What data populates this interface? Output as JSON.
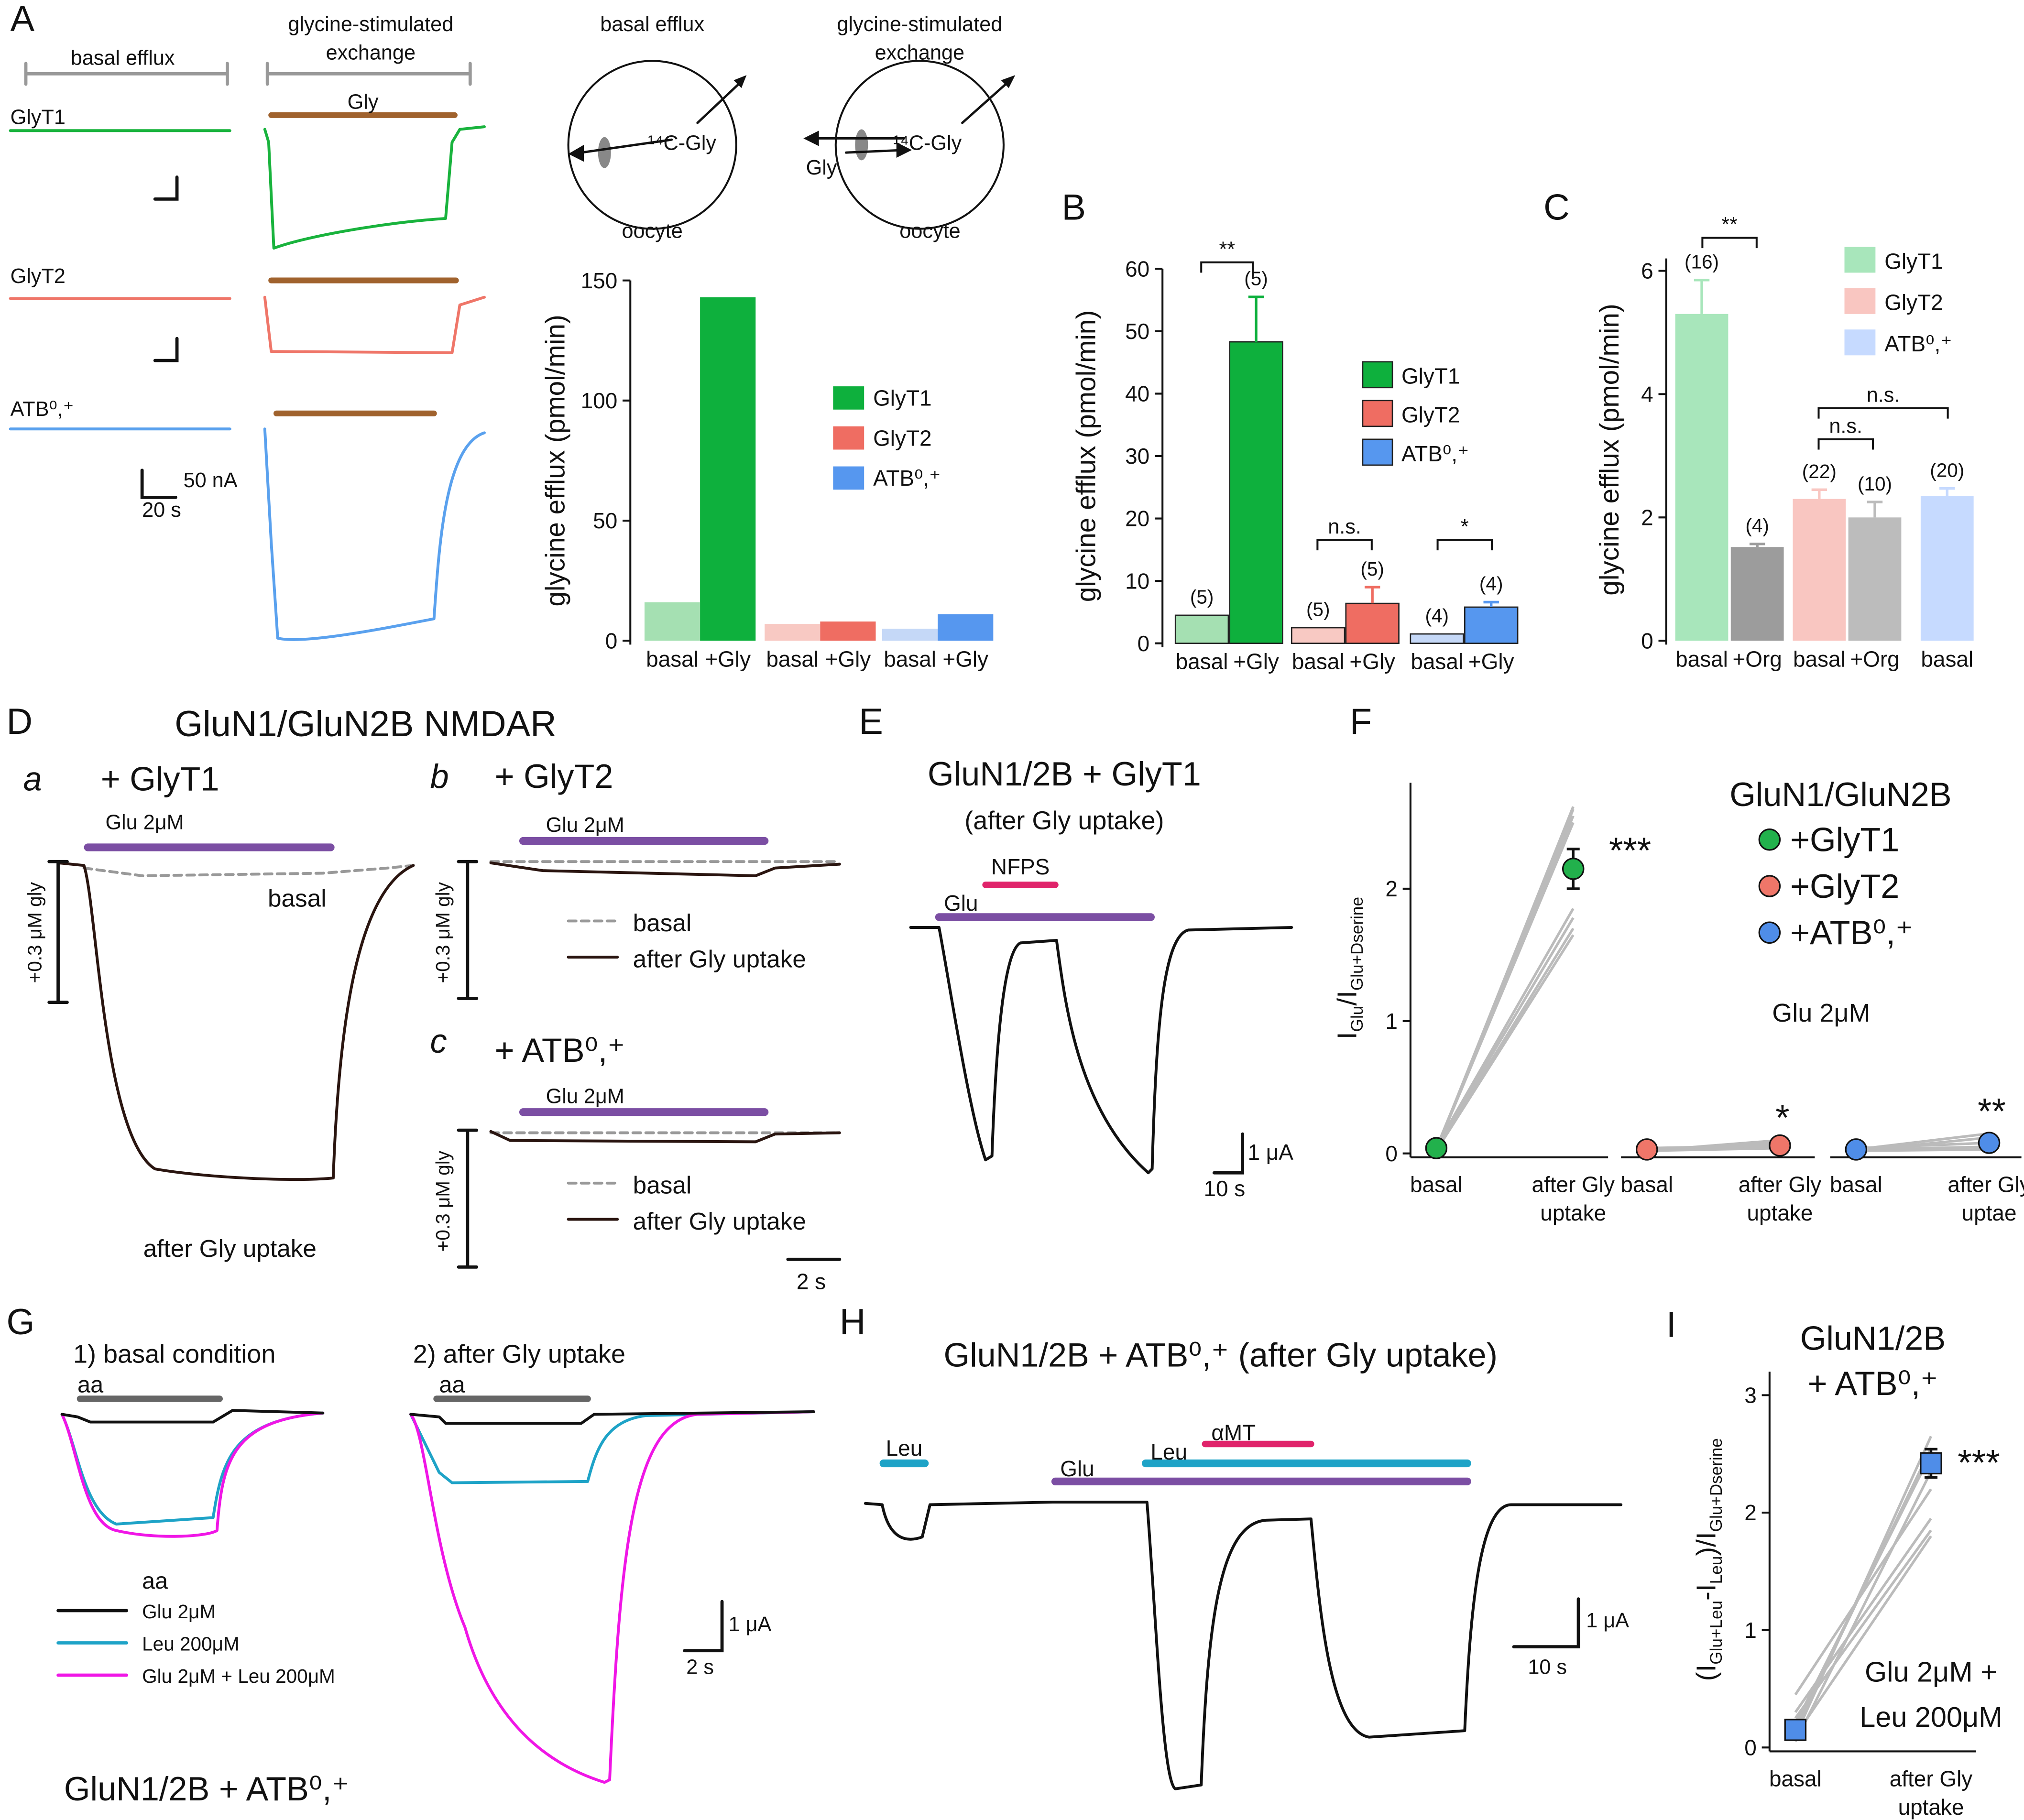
{
  "text": {
    "A": "A",
    "basal_efflux": "basal efflux",
    "glycine_stimulated": "glycine-stimulated",
    "exchange": "exchange",
    "GlyT1": "GlyT1",
    "Gly": "Gly",
    "GlyT2": "GlyT2",
    "ATB": "ATB⁰,⁺",
    "nA": "50 nA",
    "s20": "20 s",
    "c14": "¹⁴C-Gly",
    "oocyte": "oocyte",
    "B": "B",
    "C": "C",
    "D": "D",
    "D_title": "GluN1/GluN2B NMDAR",
    "a": "a",
    "b": "b",
    "c": "c",
    "plus_GlyT1": "+ GlyT1",
    "plus_GlyT2": "+ GlyT2",
    "plus_ATB": "+ ATB⁰,⁺",
    "glu2": "Glu 2μM",
    "gly03": "+0.3 μM gly",
    "basal": "basal",
    "after": "after Gly uptake",
    "s2": "2 s",
    "E": "E",
    "E_title": "GluN1/2B + GlyT1",
    "E_sub": "(after Gly uptake)",
    "NFPS": "NFPS",
    "Glu": "Glu",
    "uA": "1 μA",
    "s10": "10 s",
    "F": "F",
    "G": "G",
    "G1": "1) basal condition",
    "G2": "2) after Gly uptake",
    "aa": "aa",
    "leu200": "Leu 200μM",
    "glu_leu": "Glu 2μM + Leu 200μM",
    "G_title": "GluN1/2B + ATB⁰,⁺",
    "H": "H",
    "H_title": "GluN1/2B + ATB⁰,⁺ (after Gly uptake)",
    "Leu": "Leu",
    "aMT": "αMT",
    "I": "I"
  },
  "chart_data": [
    {
      "type": "bar",
      "ylabel": "glycine efflux (pmol/min)",
      "ylim": [
        0,
        150
      ],
      "yticks": [
        0,
        50,
        100,
        150
      ],
      "series": [
        {
          "name": "GlyT1",
          "color": "#0eb03d",
          "colors": [
            "#a5e0b2",
            "#0eb03d"
          ],
          "categories": [
            "basal",
            "+Gly"
          ],
          "values": [
            16,
            143
          ]
        },
        {
          "name": "GlyT2",
          "color": "#ef6d62",
          "colors": [
            "#f8c9c3",
            "#ef6d62"
          ],
          "categories": [
            "basal",
            "+Gly"
          ],
          "values": [
            7,
            8
          ]
        },
        {
          "name": "ATB⁰,⁺",
          "color": "#5697ef",
          "colors": [
            "#c5d8f7",
            "#5697ef"
          ],
          "categories": [
            "basal",
            "+Gly"
          ],
          "values": [
            5,
            11
          ]
        }
      ]
    },
    {
      "type": "bar",
      "ylabel": "glycine efflux (pmol/min)",
      "ylim": [
        0,
        60
      ],
      "yticks": [
        0,
        10,
        20,
        30,
        40,
        50,
        60
      ],
      "series": [
        {
          "name": "GlyT1",
          "color": "#0eb03d",
          "colors": [
            "#a5e0b2",
            "#0eb03d"
          ],
          "categories": [
            "basal",
            "+Gly"
          ],
          "values": [
            4.5,
            48.3
          ],
          "errors": [
            null,
            7.2
          ],
          "n_labels": [
            "(5)",
            "(5)"
          ]
        },
        {
          "name": "GlyT2",
          "color": "#ef6d62",
          "colors": [
            "#f8c9c3",
            "#ef6d62"
          ],
          "categories": [
            "basal",
            "+Gly"
          ],
          "values": [
            2.5,
            6.4
          ],
          "errors": [
            null,
            2.6
          ],
          "n_labels": [
            "(5)",
            "(5)"
          ]
        },
        {
          "name": "ATB⁰,⁺",
          "color": "#5697ef",
          "colors": [
            "#c5d8f7",
            "#5697ef"
          ],
          "categories": [
            "basal",
            "+Gly"
          ],
          "values": [
            1.5,
            5.8
          ],
          "errors": [
            null,
            0.8
          ],
          "n_labels": [
            "(4)",
            "(4)"
          ]
        }
      ],
      "significance": [
        "**",
        "n.s.",
        "*"
      ]
    },
    {
      "type": "bar",
      "ylabel": "glycine efflux (pmol/min)",
      "ylim": [
        0,
        6.2
      ],
      "yticks": [
        0,
        2,
        4,
        6
      ],
      "series": [
        {
          "name": "GlyT1",
          "color": "#a8e6bb",
          "colors": [
            "#a8e6bb",
            "#9c9c9c"
          ],
          "categories": [
            "basal",
            "+Org"
          ],
          "values": [
            5.3,
            1.52
          ],
          "errors": [
            0.55,
            0.05
          ],
          "n_labels": [
            "(16)",
            "(4)"
          ]
        },
        {
          "name": "GlyT2",
          "color": "#f9c6c1",
          "colors": [
            "#f9c6c1",
            "#bcbcbc"
          ],
          "categories": [
            "basal",
            "+Org"
          ],
          "values": [
            2.3,
            2.0
          ],
          "errors": [
            0.15,
            0.25
          ],
          "n_labels": [
            "(22)",
            "(10)"
          ]
        },
        {
          "name": "ATB⁰,⁺",
          "color": "#c6daff",
          "colors": [
            "#c6daff"
          ],
          "categories": [
            "basal"
          ],
          "values": [
            2.35
          ],
          "errors": [
            0.12
          ],
          "n_labels": [
            "(20)"
          ]
        }
      ],
      "significance": [
        "**",
        "n.s.",
        "n.s."
      ]
    },
    {
      "type": "dot",
      "marker": "circle",
      "title": "GluN1/GluN2B",
      "note": "Glu 2μM",
      "ylabel": [
        "I",
        "Glu",
        "/I",
        "Glu+Dserine"
      ],
      "ylim": [
        0,
        2.8
      ],
      "yticks": [
        0,
        1,
        2
      ],
      "groups": [
        {
          "name": "+GlyT1",
          "color": "#22b14c",
          "xlabels": [
            [
              "basal"
            ],
            [
              "after Gly",
              "uptake"
            ]
          ],
          "values": [
            0.04,
            2.15
          ],
          "errors": [
            null,
            0.15
          ],
          "stars": "***",
          "individual": [
            [
              0.03,
              2.62
            ],
            [
              0.02,
              2.6
            ],
            [
              0.04,
              2.55
            ],
            [
              0.03,
              2.5
            ],
            [
              0.05,
              1.85
            ],
            [
              0.04,
              1.78
            ],
            [
              0.03,
              1.7
            ],
            [
              0.02,
              1.65
            ]
          ]
        },
        {
          "name": "+GlyT2",
          "color": "#ef7669",
          "xlabels": [
            [
              "basal"
            ],
            [
              "after Gly",
              "uptake"
            ]
          ],
          "values": [
            0.03,
            0.06
          ],
          "errors": [
            null,
            null
          ],
          "stars": "*",
          "individual": [
            [
              0.02,
              0.1
            ],
            [
              0.03,
              0.08
            ],
            [
              0.03,
              0.05
            ],
            [
              0.02,
              0.04
            ],
            [
              0.04,
              0.06
            ]
          ]
        },
        {
          "name": "+ATB⁰,⁺",
          "color": "#4f8de8",
          "xlabels": [
            [
              "basal"
            ],
            [
              "after Gly",
              "uptae"
            ]
          ],
          "values": [
            0.03,
            0.08
          ],
          "errors": [
            null,
            null
          ],
          "stars": "**",
          "individual": [
            [
              0.03,
              0.15
            ],
            [
              0.02,
              0.12
            ],
            [
              0.04,
              0.08
            ],
            [
              0.03,
              0.05
            ],
            [
              0.02,
              0.03
            ]
          ]
        }
      ]
    },
    {
      "type": "dot",
      "marker": "square",
      "title": [
        "GluN1/2B",
        "+ ATB⁰,⁺"
      ],
      "note": [
        "Glu 2μM +",
        "Leu 200μM"
      ],
      "ylabel": [
        "(I",
        "Glu+Leu",
        "-I",
        "Leu",
        ")/I",
        "Glu+Dserine"
      ],
      "ylim": [
        0,
        3.2
      ],
      "yticks": [
        0,
        1,
        2,
        3
      ],
      "groups": [
        {
          "color": "#4f8de8",
          "xlabels": [
            [
              "basal"
            ],
            [
              "after Gly",
              "uptake"
            ]
          ],
          "values": [
            0.15,
            2.42
          ],
          "errors": [
            0.07,
            0.12
          ],
          "stars": "***",
          "individual": [
            [
              0.1,
              2.65
            ],
            [
              0.15,
              2.55
            ],
            [
              0.2,
              2.5
            ],
            [
              0.05,
              2.35
            ],
            [
              0.3,
              1.95
            ],
            [
              0.25,
              1.85
            ],
            [
              0.1,
              1.8
            ],
            [
              0.45,
              2.2
            ]
          ]
        }
      ]
    }
  ]
}
